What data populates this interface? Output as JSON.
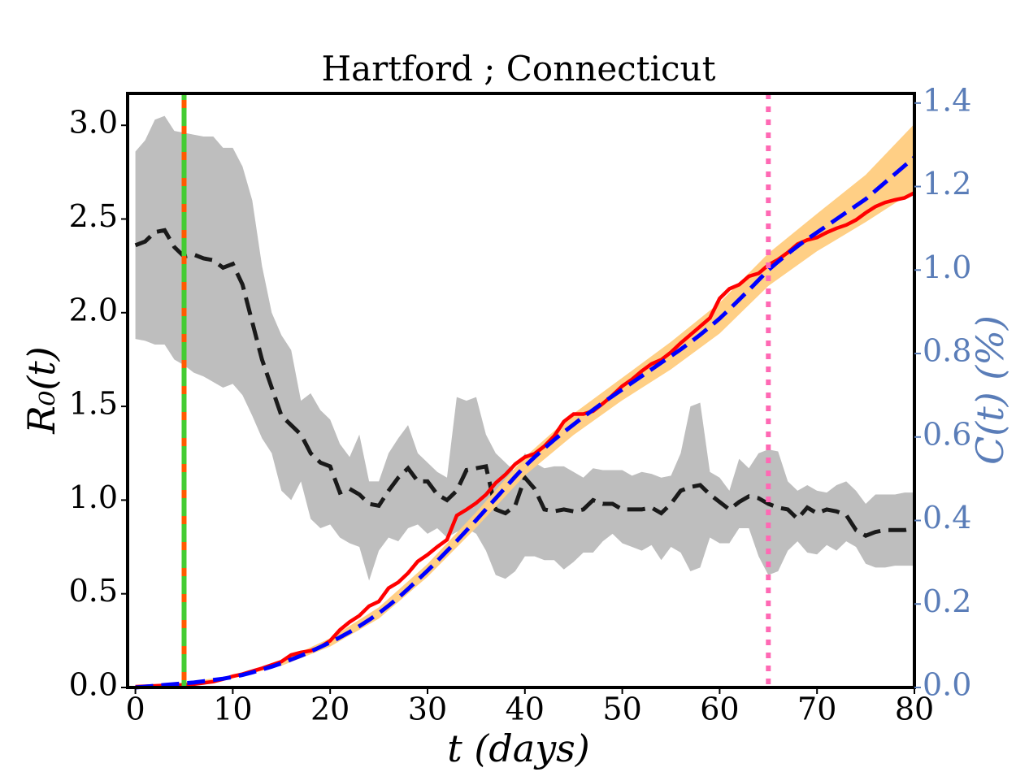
{
  "chart_data": {
    "type": "line",
    "title": "Hartford ; Connecticut",
    "xlabel": "t (days)",
    "ylabel": "R₀(t)",
    "y2label": "C(t) (%)",
    "y2color": "#5a7db8",
    "x": [
      0,
      1,
      2,
      3,
      4,
      5,
      6,
      7,
      8,
      9,
      10,
      11,
      12,
      13,
      14,
      15,
      16,
      17,
      18,
      19,
      20,
      21,
      22,
      23,
      24,
      25,
      26,
      27,
      28,
      29,
      30,
      31,
      32,
      33,
      34,
      35,
      36,
      37,
      38,
      39,
      40,
      41,
      42,
      43,
      44,
      45,
      46,
      47,
      48,
      49,
      50,
      51,
      52,
      53,
      54,
      55,
      56,
      57,
      58,
      59,
      60,
      61,
      62,
      63,
      64,
      65,
      66,
      67,
      68,
      69,
      70,
      71,
      72,
      73,
      74,
      75,
      76,
      77,
      78,
      79,
      80
    ],
    "xlim": [
      -0.8,
      80
    ],
    "ylim": [
      0,
      3.17
    ],
    "y2lim": [
      0,
      1.423
    ],
    "xticks": [
      0,
      10,
      20,
      30,
      40,
      50,
      60,
      70,
      80
    ],
    "yticks": [
      {
        "value": 0,
        "label": "0.0"
      },
      {
        "value": 0.5,
        "label": "0.5"
      },
      {
        "value": 1,
        "label": "1.0"
      },
      {
        "value": 1.5,
        "label": "1.5"
      },
      {
        "value": 2,
        "label": "2.0"
      },
      {
        "value": 2.5,
        "label": "2.5"
      },
      {
        "value": 3,
        "label": "3.0"
      }
    ],
    "y2ticks": [
      {
        "value": 0,
        "label": "0.0"
      },
      {
        "value": 0.2,
        "label": "0.2"
      },
      {
        "value": 0.4,
        "label": "0.4"
      },
      {
        "value": 0.6,
        "label": "0.6"
      },
      {
        "value": 0.8,
        "label": "0.8"
      },
      {
        "value": 1,
        "label": "1.0"
      },
      {
        "value": 1.2,
        "label": "1.2"
      },
      {
        "value": 1.4,
        "label": "1.4"
      }
    ],
    "bands": [
      {
        "axis": "y",
        "color": "#bebebe",
        "lower": [
          1.86,
          1.85,
          1.83,
          1.83,
          1.75,
          1.72,
          1.68,
          1.66,
          1.63,
          1.6,
          1.62,
          1.56,
          1.45,
          1.33,
          1.25,
          1.05,
          1.0,
          1.1,
          0.9,
          0.85,
          0.87,
          0.8,
          0.77,
          0.75,
          0.57,
          0.73,
          0.8,
          0.78,
          0.85,
          0.87,
          0.82,
          0.85,
          0.8,
          0.83,
          0.85,
          0.82,
          0.73,
          0.6,
          0.58,
          0.62,
          0.7,
          0.7,
          0.68,
          0.68,
          0.63,
          0.67,
          0.72,
          0.72,
          0.78,
          0.82,
          0.77,
          0.75,
          0.73,
          0.76,
          0.68,
          0.75,
          0.72,
          0.62,
          0.64,
          0.8,
          0.77,
          0.77,
          0.85,
          0.85,
          0.7,
          0.6,
          0.62,
          0.73,
          0.78,
          0.72,
          0.71,
          0.76,
          0.73,
          0.78,
          0.75,
          0.66,
          0.64,
          0.64,
          0.65,
          0.65,
          0.65
        ],
        "upper": [
          2.86,
          2.92,
          3.03,
          3.05,
          2.97,
          2.96,
          2.95,
          2.94,
          2.94,
          2.88,
          2.88,
          2.78,
          2.6,
          2.25,
          2.0,
          1.88,
          1.8,
          1.53,
          1.57,
          1.48,
          1.43,
          1.3,
          1.23,
          1.35,
          1.1,
          1.1,
          1.25,
          1.33,
          1.4,
          1.25,
          1.2,
          1.15,
          1.12,
          1.55,
          1.53,
          1.55,
          1.35,
          1.25,
          1.2,
          1.15,
          1.25,
          1.2,
          1.17,
          1.18,
          1.18,
          1.15,
          1.12,
          1.17,
          1.16,
          1.16,
          1.16,
          1.13,
          1.15,
          1.14,
          1.12,
          1.13,
          1.25,
          1.5,
          1.52,
          1.15,
          1.12,
          1.05,
          1.22,
          1.17,
          1.25,
          1.27,
          1.26,
          1.1,
          1.05,
          1.08,
          1.05,
          1.04,
          1.08,
          1.1,
          1.05,
          0.98,
          1.03,
          1.03,
          1.03,
          1.04,
          1.04
        ]
      },
      {
        "axis": "y2",
        "color": "#ffcf85",
        "x": [
          0,
          5,
          10,
          15,
          20,
          25,
          30,
          35,
          40,
          45,
          50,
          55,
          60,
          65,
          70,
          75,
          80
        ],
        "lower": [
          0,
          0.008,
          0.022,
          0.052,
          0.098,
          0.165,
          0.265,
          0.383,
          0.508,
          0.605,
          0.688,
          0.762,
          0.848,
          0.962,
          1.045,
          1.115,
          1.19
        ],
        "upper": [
          0,
          0.012,
          0.028,
          0.064,
          0.118,
          0.192,
          0.296,
          0.42,
          0.552,
          0.656,
          0.742,
          0.828,
          0.922,
          1.04,
          1.135,
          1.228,
          1.35
        ]
      }
    ],
    "series": [
      {
        "axis": "y",
        "color": "#1a1a1a",
        "dash": "dashed",
        "values": [
          2.36,
          2.38,
          2.43,
          2.44,
          2.35,
          2.3,
          2.31,
          2.29,
          2.28,
          2.24,
          2.26,
          2.15,
          1.95,
          1.75,
          1.6,
          1.45,
          1.4,
          1.35,
          1.25,
          1.2,
          1.18,
          1.04,
          1.06,
          1.03,
          0.98,
          0.97,
          1.05,
          1.12,
          1.17,
          1.1,
          1.1,
          1.03,
          1.0,
          1.05,
          1.16,
          1.17,
          1.18,
          0.95,
          0.93,
          0.97,
          1.12,
          1.06,
          0.95,
          0.94,
          0.95,
          0.94,
          0.95,
          1.0,
          0.98,
          0.98,
          0.95,
          0.95,
          0.95,
          0.96,
          0.93,
          0.98,
          1.05,
          1.07,
          1.08,
          1.03,
          0.99,
          0.95,
          0.99,
          1.02,
          1.01,
          0.98,
          0.96,
          0.95,
          0.9,
          0.96,
          0.93,
          0.95,
          0.94,
          0.92,
          0.84,
          0.81,
          0.83,
          0.84,
          0.84,
          0.84,
          0.85
        ]
      },
      {
        "axis": "y2",
        "color": "#ff0000",
        "dash": "solid",
        "values": [
          0.002,
          0.003,
          0.004,
          0.005,
          0.005,
          0.006,
          0.008,
          0.011,
          0.014,
          0.02,
          0.027,
          0.032,
          0.039,
          0.046,
          0.054,
          0.062,
          0.078,
          0.084,
          0.088,
          0.097,
          0.112,
          0.138,
          0.157,
          0.172,
          0.195,
          0.206,
          0.238,
          0.252,
          0.274,
          0.302,
          0.318,
          0.337,
          0.354,
          0.412,
          0.426,
          0.442,
          0.462,
          0.49,
          0.51,
          0.535,
          0.552,
          0.56,
          0.578,
          0.602,
          0.637,
          0.655,
          0.655,
          0.662,
          0.68,
          0.7,
          0.722,
          0.738,
          0.758,
          0.775,
          0.785,
          0.803,
          0.825,
          0.845,
          0.865,
          0.885,
          0.932,
          0.955,
          0.965,
          0.985,
          0.992,
          1.012,
          1.025,
          1.042,
          1.062,
          1.072,
          1.078,
          1.09,
          1.1,
          1.108,
          1.12,
          1.137,
          1.152,
          1.162,
          1.168,
          1.173,
          1.185
        ]
      },
      {
        "axis": "y2",
        "color": "#0000ff",
        "dash": "dashed",
        "values": [
          0,
          0.002,
          0.004,
          0.006,
          0.008,
          0.01,
          0.012,
          0.015,
          0.018,
          0.021,
          0.025,
          0.03,
          0.036,
          0.043,
          0.05,
          0.058,
          0.067,
          0.076,
          0.086,
          0.097,
          0.108,
          0.12,
          0.133,
          0.147,
          0.162,
          0.178,
          0.196,
          0.215,
          0.236,
          0.258,
          0.28,
          0.303,
          0.327,
          0.351,
          0.376,
          0.401,
          0.427,
          0.453,
          0.479,
          0.505,
          0.53,
          0.552,
          0.573,
          0.593,
          0.612,
          0.63,
          0.648,
          0.665,
          0.682,
          0.698,
          0.714,
          0.73,
          0.746,
          0.762,
          0.778,
          0.794,
          0.81,
          0.827,
          0.845,
          0.864,
          0.884,
          0.906,
          0.929,
          0.952,
          0.976,
          1.0,
          1.02,
          1.039,
          1.057,
          1.074,
          1.09,
          1.106,
          1.122,
          1.138,
          1.154,
          1.17,
          1.19,
          1.21,
          1.23,
          1.25,
          1.27
        ]
      }
    ],
    "vlines": [
      {
        "x": 5,
        "colors": [
          "#ff5a00",
          "#44cc33"
        ],
        "dash": "dashed"
      },
      {
        "x": 65,
        "colors": [
          "#ff69b4"
        ],
        "dash": "dotted"
      }
    ]
  }
}
